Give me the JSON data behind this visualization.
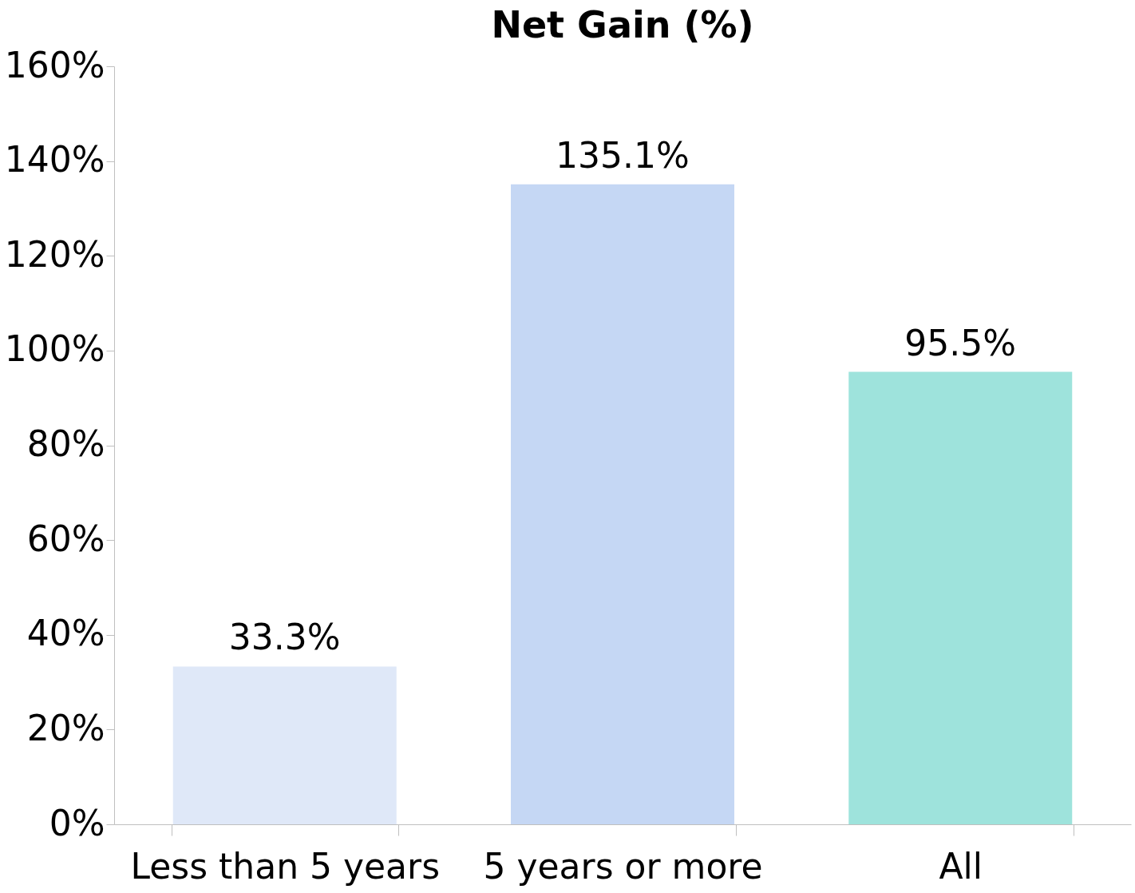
{
  "chart_data": {
    "type": "bar",
    "title": "Net Gain (%)",
    "categories": [
      "Less than 5 years",
      "5 years or more",
      "All"
    ],
    "values": [
      33.3,
      135.1,
      95.5
    ],
    "colors": [
      "#dfe8f8",
      "#c5d7f4",
      "#9ee3dc"
    ],
    "value_labels": [
      "33.3%",
      "135.1%",
      "95.5%"
    ],
    "ylim": [
      0,
      160
    ],
    "yticks": [
      {
        "value": 0,
        "label": "0%"
      },
      {
        "value": 20,
        "label": "20%"
      },
      {
        "value": 40,
        "label": "40%"
      },
      {
        "value": 60,
        "label": "60%"
      },
      {
        "value": 80,
        "label": "80%"
      },
      {
        "value": 100,
        "label": "100%"
      },
      {
        "value": 120,
        "label": "120%"
      },
      {
        "value": 140,
        "label": "140%"
      },
      {
        "value": 160,
        "label": "160%"
      }
    ],
    "grid": false,
    "legend": false
  }
}
